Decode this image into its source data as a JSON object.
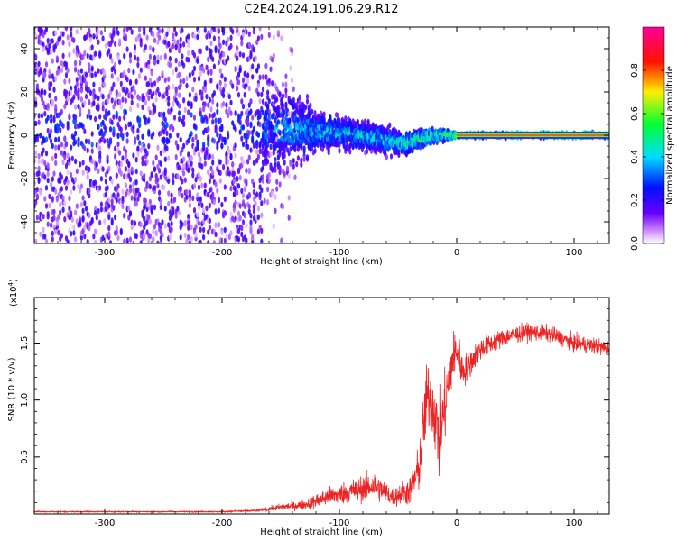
{
  "chart_data": [
    {
      "type": "heatmap",
      "title": "C2E4.2024.191.06.29.R12",
      "xlabel": "Height of straight line (km)",
      "ylabel": "Frequency (Hz)",
      "xlim": [
        -360,
        130
      ],
      "ylim": [
        -50,
        50
      ],
      "x_ticks": [
        -300,
        -200,
        -100,
        0,
        100
      ],
      "y_ticks": [
        -40,
        -20,
        0,
        20,
        40
      ],
      "colorbar": {
        "label": "Normalized spectral amplitude",
        "range": [
          0,
          1
        ],
        "ticks": [
          0.0,
          0.2,
          0.4,
          0.6,
          0.8
        ],
        "tick_labels": [
          "0.0",
          "0.2",
          "0.4",
          "0.6",
          "0.8"
        ],
        "colormap": "rainbow (white → violet → blue → cyan → green → yellow → red → magenta)"
      },
      "trend": [
        {
          "x": -340,
          "f": 3,
          "spread": 40,
          "amp": 0.15
        },
        {
          "x": -200,
          "f": 3,
          "spread": 40,
          "amp": 0.15
        },
        {
          "x": -165,
          "f": 3,
          "spread": 30,
          "amp": 0.3
        },
        {
          "x": -120,
          "f": 2,
          "spread": 8,
          "amp": 0.45
        },
        {
          "x": -80,
          "f": 0,
          "spread": 6,
          "amp": 0.45
        },
        {
          "x": -45,
          "f": -4,
          "spread": 5,
          "amp": 0.5
        },
        {
          "x": -20,
          "f": 0,
          "spread": 3,
          "amp": 0.6
        },
        {
          "x": 0,
          "f": 0,
          "spread": 1,
          "amp": 0.7
        },
        {
          "x": 130,
          "f": 0,
          "spread": 1,
          "amp": 0.75
        }
      ]
    },
    {
      "type": "line",
      "xlabel": "Height of straight line (km)",
      "ylabel": "SNR (10 * v/v)",
      "y_multiplier": "(x10^4)",
      "xlim": [
        -360,
        130
      ],
      "ylim": [
        0,
        1.9
      ],
      "x_ticks": [
        -300,
        -200,
        -100,
        0,
        100
      ],
      "y_ticks": [
        0.5,
        1.0,
        1.5
      ],
      "y_tick_labels": [
        "0.5",
        "1.0",
        "1.5"
      ],
      "line_color": "#ee2222",
      "series": [
        {
          "x": [
            -360,
            -300,
            -250,
            -200,
            -170,
            -150,
            -130,
            -110,
            -90,
            -70,
            -55,
            -40,
            -32,
            -28,
            -25,
            -20,
            -15,
            -10,
            -5,
            0,
            5,
            10,
            20,
            30,
            40,
            60,
            80,
            100,
            115,
            130
          ],
          "y": [
            0.02,
            0.02,
            0.02,
            0.02,
            0.03,
            0.06,
            0.08,
            0.15,
            0.2,
            0.25,
            0.15,
            0.2,
            0.4,
            0.8,
            1.05,
            0.95,
            0.65,
            0.95,
            1.3,
            1.45,
            1.25,
            1.3,
            1.45,
            1.5,
            1.55,
            1.6,
            1.58,
            1.5,
            1.48,
            1.45
          ],
          "noise": [
            0.005,
            0.005,
            0.005,
            0.005,
            0.01,
            0.03,
            0.04,
            0.08,
            0.1,
            0.12,
            0.08,
            0.12,
            0.2,
            0.3,
            0.3,
            0.3,
            0.35,
            0.3,
            0.25,
            0.2,
            0.15,
            0.12,
            0.1,
            0.08,
            0.08,
            0.07,
            0.07,
            0.07,
            0.07,
            0.07
          ]
        }
      ]
    }
  ]
}
